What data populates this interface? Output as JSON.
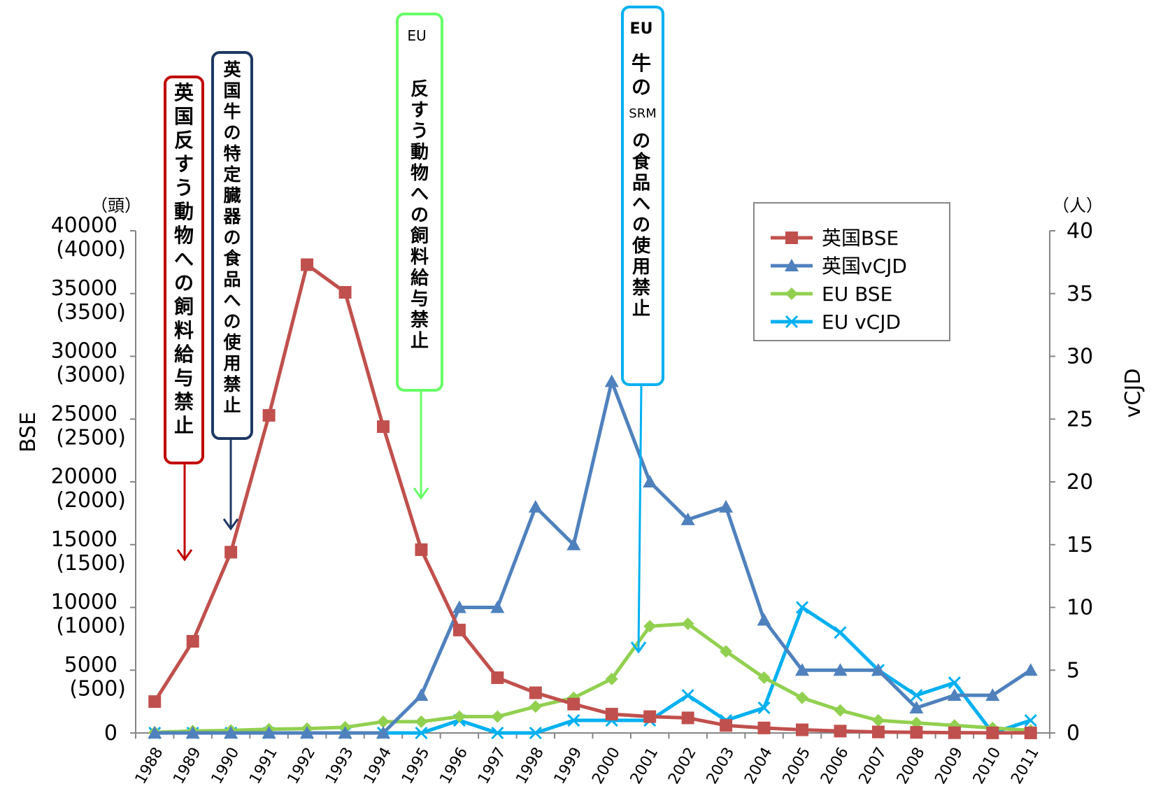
{
  "chart_data": {
    "type": "line",
    "categories": [
      "1988",
      "1989",
      "1990",
      "1991",
      "1992",
      "1993",
      "1994",
      "1995",
      "1996",
      "1997",
      "1998",
      "1999",
      "2000",
      "2001",
      "2002",
      "2003",
      "2004",
      "2005",
      "2006",
      "2007",
      "2008",
      "2009",
      "2010",
      "2011"
    ],
    "left_axis": {
      "label": "BSE",
      "unit": "（頭）",
      "range": [
        0,
        40000
      ],
      "ticks": [
        {
          "value": 0,
          "label": "0",
          "sub": ""
        },
        {
          "value": 5000,
          "label": "5000",
          "sub": "(500)"
        },
        {
          "value": 10000,
          "label": "10000",
          "sub": "(1000)"
        },
        {
          "value": 15000,
          "label": "15000",
          "sub": "(1500)"
        },
        {
          "value": 20000,
          "label": "20000",
          "sub": "(2000)"
        },
        {
          "value": 25000,
          "label": "25000",
          "sub": "(2500)"
        },
        {
          "value": 30000,
          "label": "30000",
          "sub": "(3000)"
        },
        {
          "value": 35000,
          "label": "35000",
          "sub": "(3500)"
        },
        {
          "value": 40000,
          "label": "40000",
          "sub": "(4000)"
        }
      ]
    },
    "right_axis": {
      "label": "vCJD",
      "unit": "（人）",
      "range": [
        0,
        40
      ],
      "ticks": [
        0,
        5,
        10,
        15,
        20,
        25,
        30,
        35,
        40
      ]
    },
    "series": [
      {
        "name": "英国BSE",
        "axis": "left",
        "marker": "square",
        "color": "#c0504d",
        "values": [
          2500,
          7300,
          14400,
          25300,
          37300,
          35100,
          24400,
          14600,
          8200,
          4400,
          3200,
          2300,
          1500,
          1300,
          1200,
          600,
          400,
          250,
          150,
          80,
          50,
          20,
          10,
          5
        ]
      },
      {
        "name": "英国vCJD",
        "axis": "right",
        "marker": "triangle",
        "color": "#4f81bd",
        "values": [
          0,
          0,
          0,
          0,
          0,
          0,
          0,
          3,
          10,
          10,
          18,
          15,
          28,
          20,
          17,
          18,
          9,
          5,
          5,
          5,
          2,
          3,
          3,
          5
        ]
      },
      {
        "name": "EU BSE",
        "axis": "left",
        "marker": "diamond",
        "color": "#92d050",
        "values": [
          50,
          150,
          200,
          300,
          350,
          450,
          900,
          900,
          1300,
          1300,
          2100,
          2800,
          4300,
          8500,
          8700,
          6500,
          4400,
          2800,
          1800,
          1000,
          800,
          600,
          400,
          200
        ]
      },
      {
        "name": "EU vCJD",
        "axis": "right",
        "marker": "cross",
        "color": "#00b0f0",
        "values": [
          0,
          0,
          0,
          0,
          0,
          0,
          0,
          0,
          1,
          0,
          0,
          1,
          1,
          1,
          3,
          1,
          2,
          10,
          8,
          5,
          3,
          4,
          0,
          1
        ]
      }
    ],
    "legend_position": "top-right",
    "grid": false,
    "annotations": [
      {
        "id": "uk-feed-ban",
        "label": "英国反すう動物への飼料給与禁止",
        "color": "#c00000"
      },
      {
        "id": "uk-srm-ban",
        "label": "英国牛の特定臓器の食品への使用禁止",
        "color": "#1f3864"
      },
      {
        "id": "eu-feed-ban",
        "prefix": "EU",
        "label": "反すう動物への飼料給与禁止",
        "color": "#66ff66"
      },
      {
        "id": "eu-srm-ban",
        "prefix": "EU",
        "label_a": "牛の",
        "mid": "SRM",
        "label_b": "の食品への使用禁止",
        "color": "#00b0f0"
      }
    ]
  }
}
